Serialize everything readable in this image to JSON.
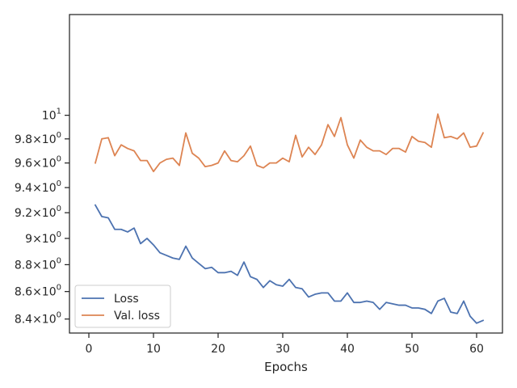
{
  "chart_data": {
    "type": "line",
    "title": "",
    "xlabel": "Epochs",
    "ylabel": "",
    "yscale": "log",
    "xlim": [
      -3,
      64
    ],
    "ylim": [
      8.3,
      10.9
    ],
    "x_ticks": [
      0,
      10,
      20,
      30,
      40,
      50,
      60
    ],
    "y_ticks": [
      {
        "value": 8.4,
        "mant": "8.4",
        "exp": "0"
      },
      {
        "value": 8.6,
        "mant": "8.6",
        "exp": "0"
      },
      {
        "value": 8.8,
        "mant": "8.8",
        "exp": "0"
      },
      {
        "value": 9.0,
        "mant": "9",
        "exp": "0"
      },
      {
        "value": 9.2,
        "mant": "9.2",
        "exp": "0"
      },
      {
        "value": 9.4,
        "mant": "9.4",
        "exp": "0"
      },
      {
        "value": 9.6,
        "mant": "9.6",
        "exp": "0"
      },
      {
        "value": 9.8,
        "mant": "9.8",
        "exp": "0"
      },
      {
        "value": 10.0,
        "mant": "10",
        "exp": "1"
      }
    ],
    "grid": false,
    "legend_position": "lower-left",
    "x": [
      1,
      2,
      3,
      4,
      5,
      6,
      7,
      8,
      9,
      10,
      11,
      12,
      13,
      14,
      15,
      16,
      17,
      18,
      19,
      20,
      21,
      22,
      23,
      24,
      25,
      26,
      27,
      28,
      29,
      30,
      31,
      32,
      33,
      34,
      35,
      36,
      37,
      38,
      39,
      40,
      41,
      42,
      43,
      44,
      45,
      46,
      47,
      48,
      49,
      50,
      51,
      52,
      53,
      54,
      55,
      56,
      57,
      58,
      59,
      60,
      61
    ],
    "series": [
      {
        "name": "Loss",
        "color": "#4c72b0",
        "values": [
          9.26,
          9.17,
          9.16,
          9.07,
          9.07,
          9.05,
          9.08,
          8.96,
          9.0,
          8.95,
          8.89,
          8.87,
          8.85,
          8.84,
          8.94,
          8.85,
          8.81,
          8.77,
          8.78,
          8.74,
          8.74,
          8.75,
          8.72,
          8.82,
          8.71,
          8.69,
          8.63,
          8.68,
          8.65,
          8.64,
          8.69,
          8.63,
          8.62,
          8.56,
          8.58,
          8.59,
          8.59,
          8.53,
          8.53,
          8.59,
          8.52,
          8.52,
          8.53,
          8.52,
          8.47,
          8.52,
          8.51,
          8.5,
          8.5,
          8.48,
          8.48,
          8.47,
          8.44,
          8.53,
          8.55,
          8.45,
          8.44,
          8.53,
          8.42,
          8.37,
          8.39
        ]
      },
      {
        "name": "Val. loss",
        "color": "#dd8452",
        "values": [
          9.6,
          9.8,
          9.81,
          9.66,
          9.75,
          9.72,
          9.7,
          9.62,
          9.62,
          9.53,
          9.6,
          9.63,
          9.64,
          9.58,
          9.85,
          9.68,
          9.64,
          9.57,
          9.58,
          9.6,
          9.7,
          9.62,
          9.61,
          9.66,
          9.74,
          9.58,
          9.56,
          9.6,
          9.6,
          9.64,
          9.61,
          9.83,
          9.65,
          9.73,
          9.67,
          9.75,
          9.92,
          9.82,
          9.98,
          9.75,
          9.64,
          9.79,
          9.73,
          9.7,
          9.7,
          9.67,
          9.72,
          9.72,
          9.69,
          9.82,
          9.78,
          9.77,
          9.73,
          10.01,
          9.81,
          9.82,
          9.8,
          9.85,
          9.73,
          9.74,
          9.85
        ]
      }
    ]
  }
}
